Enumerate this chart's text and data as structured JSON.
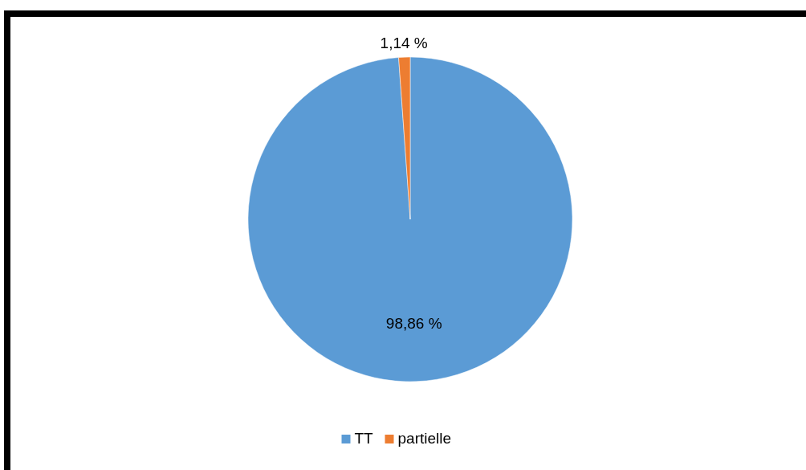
{
  "chart_data": {
    "type": "pie",
    "categories": [
      "TT",
      "partielle"
    ],
    "values": [
      98.86,
      1.14
    ],
    "colors": [
      "#5b9bd5",
      "#ed7d31"
    ],
    "value_labels": [
      "98,86 %",
      "1,14 %"
    ],
    "legend": "bottom"
  }
}
